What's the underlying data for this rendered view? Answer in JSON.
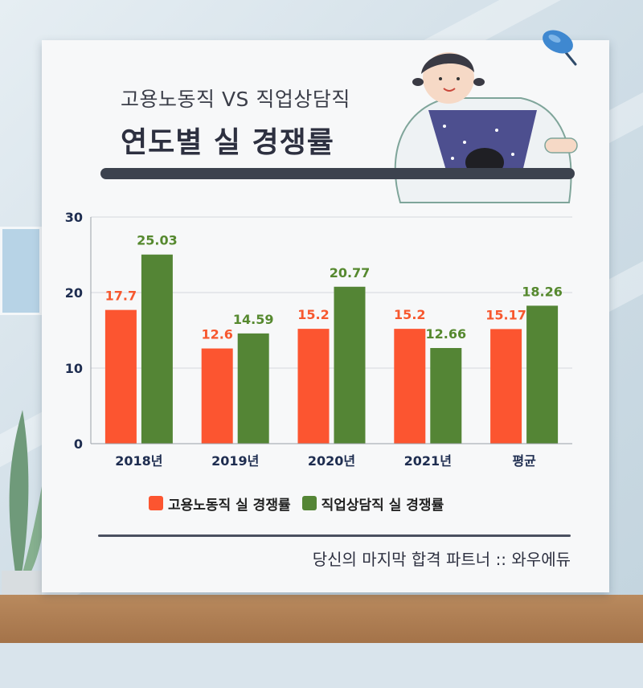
{
  "header": {
    "subtitle": "고용노동직 VS 직업상담직",
    "title": "연도별 실 경쟁률"
  },
  "footer": {
    "text": "당신의 마지막 합격 파트너 :: 와우에듀"
  },
  "colors": {
    "series_1": "#fc5530",
    "series_2": "#548535",
    "label_1": "#f7582f",
    "label_2": "#56892f",
    "axis_text": "#1e2d50"
  },
  "chart_data": {
    "type": "bar",
    "title": "연도별 실 경쟁률",
    "xlabel": "",
    "ylabel": "",
    "categories": [
      "2018년",
      "2019년",
      "2020년",
      "2021년",
      "평균"
    ],
    "series": [
      {
        "name": "고용노동직 실 경쟁률",
        "values": [
          17.7,
          12.6,
          15.2,
          15.2,
          15.17
        ]
      },
      {
        "name": "직업상담직 실 경쟁률",
        "values": [
          25.03,
          14.59,
          20.77,
          12.66,
          18.26
        ]
      }
    ],
    "value_labels": [
      [
        "17.7",
        "12.6",
        "15.2",
        "15.2",
        "15.17"
      ],
      [
        "25.03",
        "14.59",
        "20.77",
        "12.66",
        "18.26"
      ]
    ],
    "ylim": [
      0,
      30
    ],
    "yticks": [
      "0",
      "10",
      "20",
      "30"
    ],
    "ytick_values": [
      0,
      10,
      20,
      30
    ],
    "grid": true,
    "legend_position": "bottom"
  }
}
